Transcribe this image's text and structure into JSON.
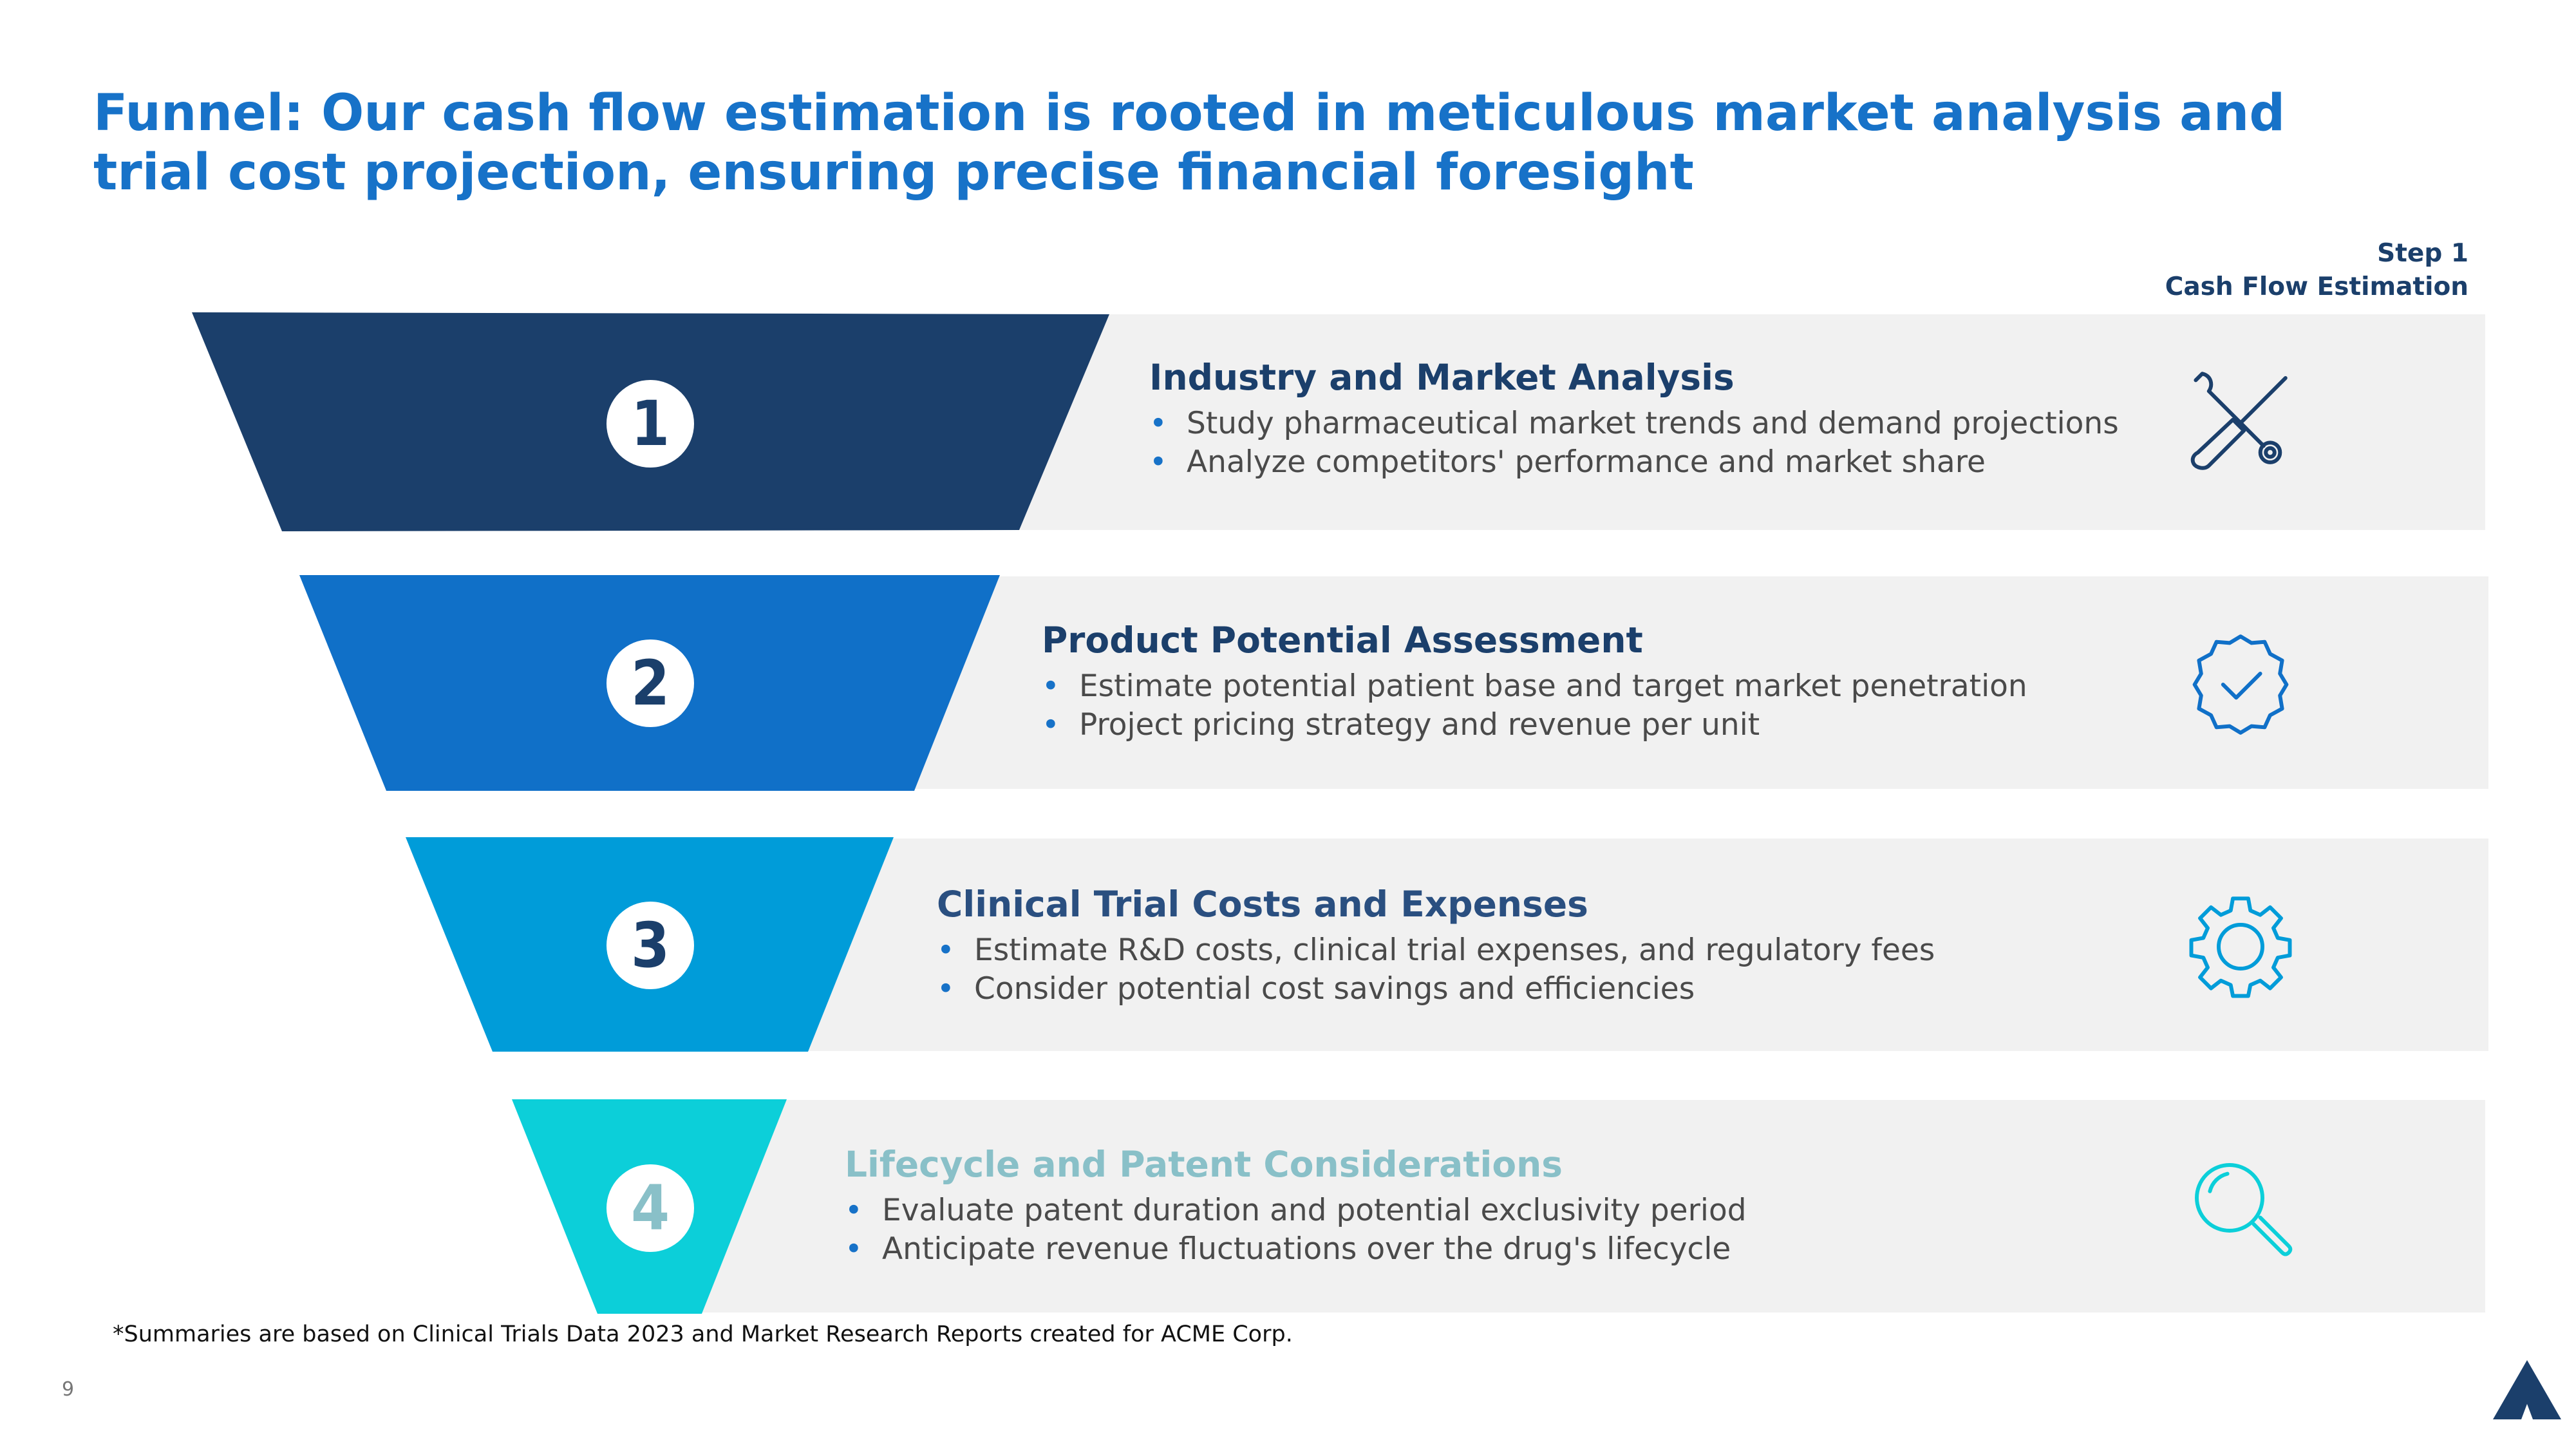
{
  "title": "Funnel: Our cash flow estimation is rooted in meticulous market analysis and trial cost projection, ensuring precise financial foresight",
  "step": {
    "line1": "Step 1",
    "line2": "Cash Flow Estimation"
  },
  "colors": {
    "title": "#1772c8",
    "band": "#f1f1f1",
    "level1": "#1b3f6b",
    "level2": "#1070c8",
    "level3": "#009cd9",
    "level4": "#0ccfd9"
  },
  "rows": [
    {
      "number": "1",
      "heading": "Industry and Market Analysis",
      "bullets": [
        "Study pharmaceutical market trends and demand projections",
        "Analyze competitors' performance and market share"
      ],
      "icon": "tools-icon"
    },
    {
      "number": "2",
      "heading": "Product Potential Assessment",
      "bullets": [
        "Estimate potential patient base and target market penetration",
        "Project pricing strategy and revenue per unit"
      ],
      "icon": "badge-check-icon"
    },
    {
      "number": "3",
      "heading": "Clinical Trial Costs and Expenses",
      "bullets": [
        "Estimate R&D costs, clinical trial expenses, and regulatory fees",
        "Consider potential cost savings and efficiencies"
      ],
      "icon": "gear-icon"
    },
    {
      "number": "4",
      "heading": "Lifecycle and Patent Considerations",
      "bullets": [
        "Evaluate patent duration and potential exclusivity period",
        "Anticipate revenue fluctuations over the drug's lifecycle"
      ],
      "icon": "magnifier-icon"
    }
  ],
  "footnote": "*Summaries are based on Clinical Trials Data 2023 and Market Research Reports created for ACME Corp.",
  "page_number": "9",
  "logo": "triangle-logo"
}
